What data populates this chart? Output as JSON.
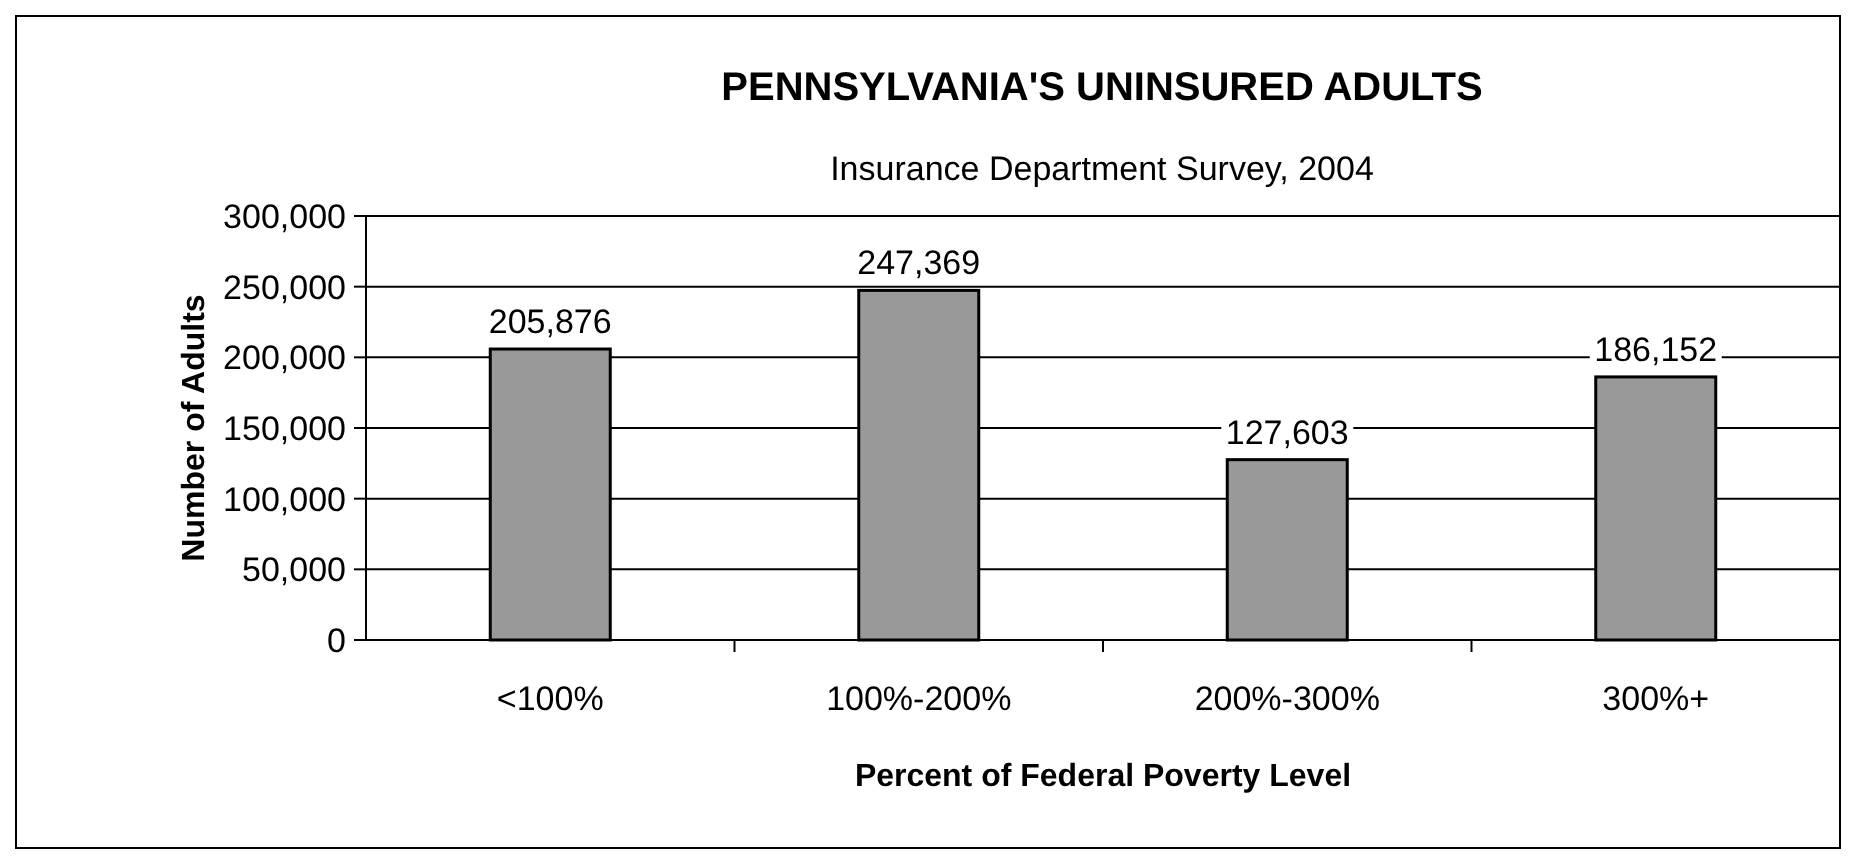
{
  "chart_data": {
    "type": "bar",
    "title": "PENNSYLVANIA'S UNINSURED ADULTS",
    "subtitle": "Insurance Department Survey, 2004",
    "xlabel": "Percent of Federal Poverty Level",
    "ylabel": "Number of Adults",
    "categories": [
      "<100%",
      "100%-200%",
      "200%-300%",
      "300%+"
    ],
    "values": [
      205876,
      247369,
      127603,
      186152
    ],
    "color": "#999999",
    "ylim": [
      0,
      300000
    ],
    "yticks": [
      {
        "value": 0,
        "label": "0"
      },
      {
        "value": 50000,
        "label": "50,000"
      },
      {
        "value": 100000,
        "label": "100,000"
      },
      {
        "value": 150000,
        "label": "150,000"
      },
      {
        "value": 200000,
        "label": "200,000"
      },
      {
        "value": 250000,
        "label": "250,000"
      },
      {
        "value": 300000,
        "label": "300,000"
      }
    ],
    "value_labels": [
      "205,876",
      "247,369",
      "127,603",
      "186,152"
    ],
    "grid": "y"
  }
}
